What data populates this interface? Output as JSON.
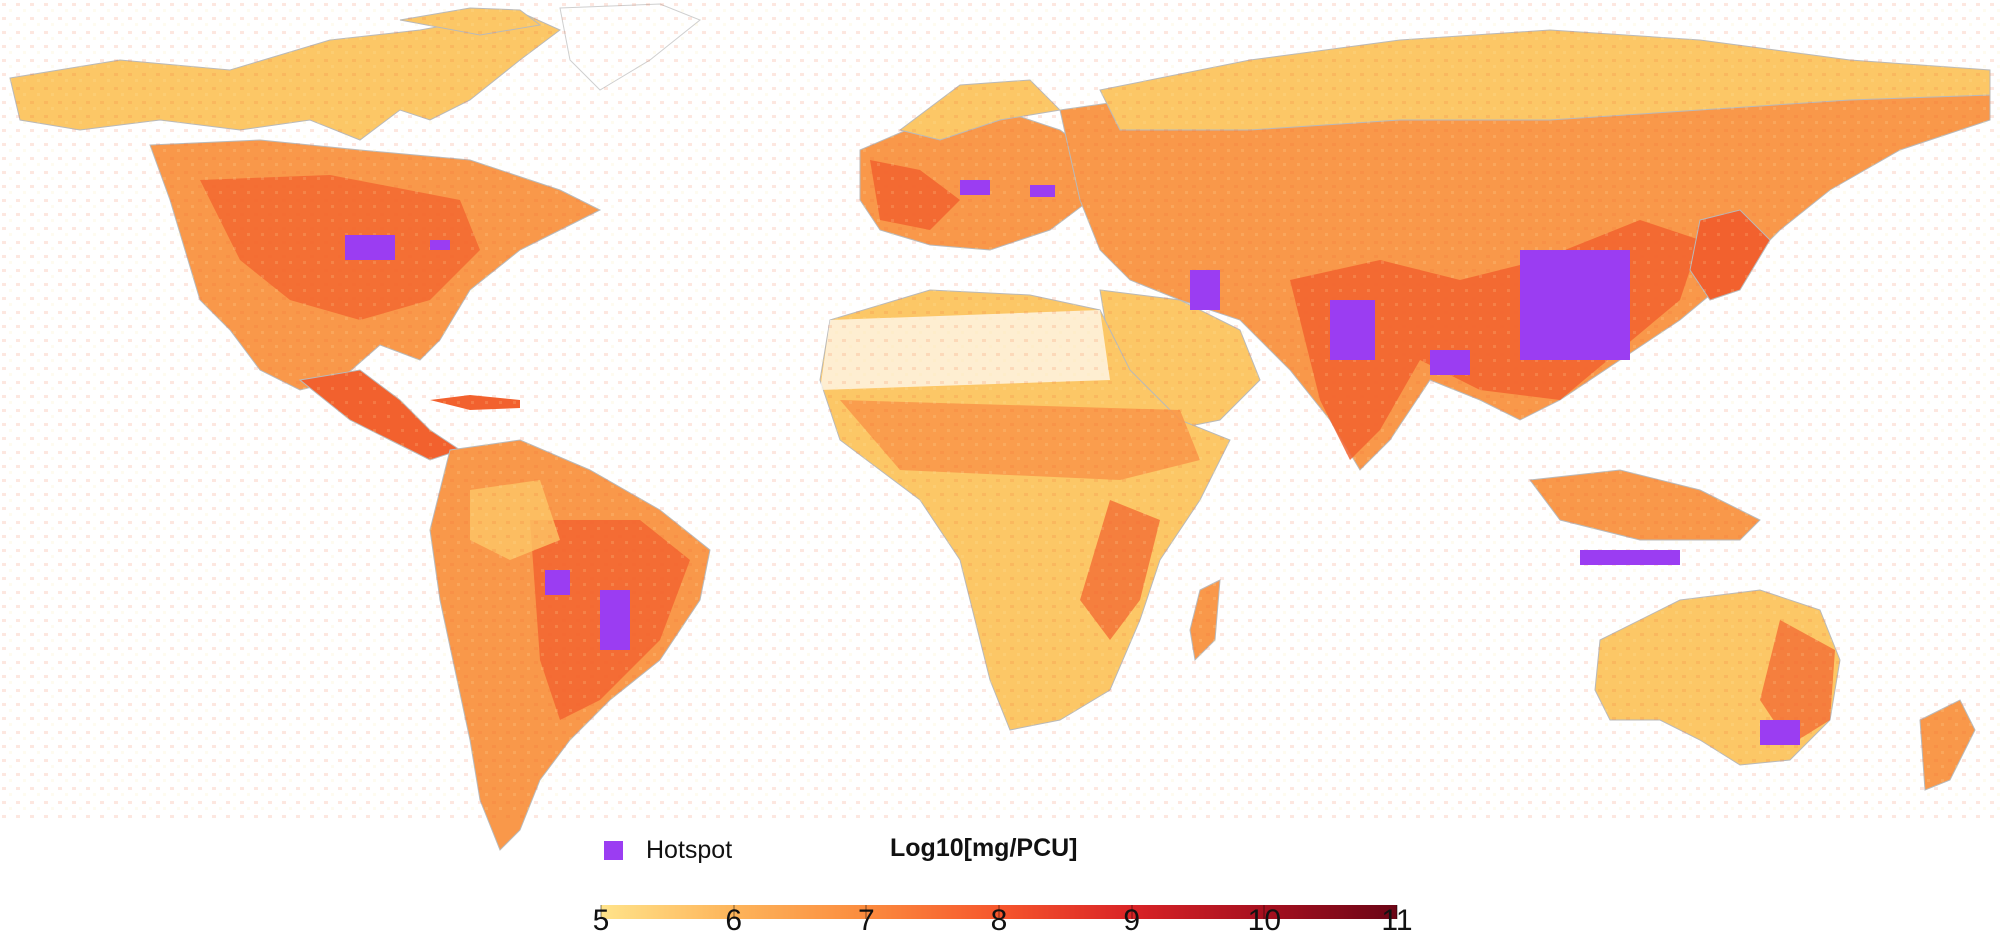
{
  "legend": {
    "hotspot_label": "Hotspot",
    "hotspot_color": "#9b3df2"
  },
  "colorbar": {
    "title": "Log10[mg/PCU]",
    "ticks": [
      "5",
      "6",
      "7",
      "8",
      "9",
      "10",
      "11"
    ],
    "range": [
      5,
      11
    ],
    "colors": [
      "#ffe38a",
      "#fdb45a",
      "#fb8b3e",
      "#f6562c",
      "#d92326",
      "#a6101f",
      "#6b0516"
    ]
  },
  "map": {
    "land_color": "#fcc766",
    "mid_color": "#f9984a",
    "high_color": "#f2612e",
    "border_color": "#b9b9b9",
    "no_data_color": "#ffffff"
  }
}
